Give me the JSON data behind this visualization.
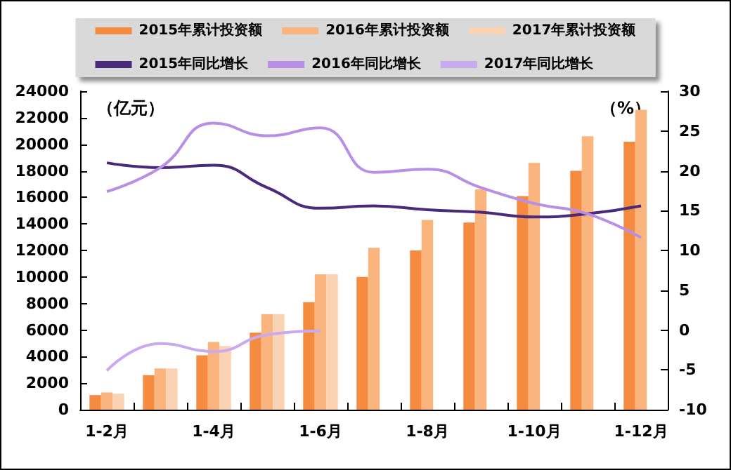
{
  "chart_data": {
    "type": "bar",
    "ylabel": "（亿元）",
    "y2label": "（%）",
    "categories": [
      "1-2月",
      null,
      "1-4月",
      null,
      "1-6月",
      null,
      "1-8月",
      null,
      "1-10月",
      null,
      "1-12月"
    ],
    "series": [
      {
        "name": "2015年累计投资额",
        "color": "#f58b3e",
        "values": [
          1100,
          2600,
          4100,
          5800,
          8100,
          10000,
          12000,
          14100,
          16100,
          18000,
          20200
        ]
      },
      {
        "name": "2016年累计投资额",
        "color": "#fab57e",
        "values": [
          1300,
          3100,
          5100,
          7200,
          10200,
          12200,
          14300,
          16600,
          18600,
          20600,
          22600
        ]
      },
      {
        "name": "2017年累计投资额",
        "color": "#fcd3b2",
        "values": [
          1200,
          3100,
          4800,
          7200,
          10200,
          null,
          null,
          null,
          null,
          null,
          null
        ]
      },
      {
        "name": "2015年同比增长",
        "type": "line",
        "axis": "y2",
        "color": "#4b2a7b",
        "values": [
          21.0,
          20.4,
          20.7,
          17.9,
          15.3,
          15.6,
          15.1,
          14.8,
          14.2,
          14.6,
          15.6
        ]
      },
      {
        "name": "2016年同比增长",
        "type": "line",
        "axis": "y2",
        "color": "#b98fe6",
        "values": [
          17.4,
          20.4,
          26.0,
          24.4,
          25.4,
          19.8,
          20.2,
          17.9,
          15.9,
          14.6,
          11.6
        ]
      },
      {
        "name": "2017年同比增长",
        "type": "line",
        "axis": "y2",
        "color": "#c9aaef",
        "values": [
          -5.1,
          -1.7,
          -2.7,
          -0.6,
          -0.1,
          null,
          null,
          null,
          null,
          null,
          null
        ]
      }
    ],
    "ylim": [
      0,
      24000
    ],
    "yticks": [
      0,
      2000,
      4000,
      6000,
      8000,
      10000,
      12000,
      14000,
      16000,
      18000,
      20000,
      22000,
      24000
    ],
    "y2lim": [
      -10,
      30
    ],
    "y2ticks": [
      -10,
      -5,
      0,
      5,
      10,
      15,
      20,
      25,
      30
    ],
    "grid": false,
    "legend": "top",
    "marker": "none",
    "line_style": "solid"
  }
}
